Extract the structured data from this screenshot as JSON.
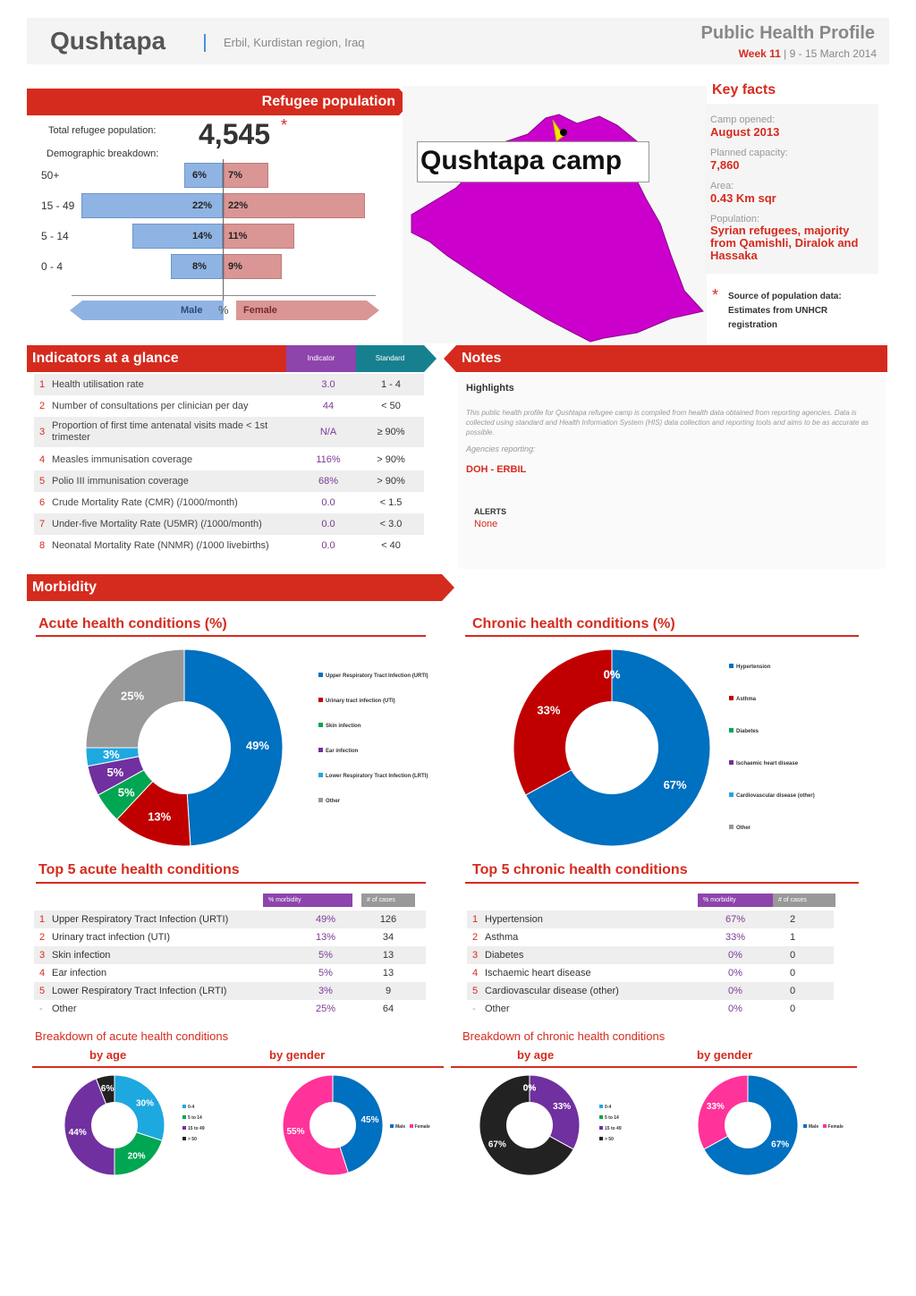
{
  "header": {
    "title": "Qushtapa",
    "location": "Erbil, Kurdistan region, Iraq",
    "profile_title": "Public Health Profile",
    "week": "Week 11",
    "dates": "| 9 - 15 March 2014"
  },
  "population": {
    "banner": "Refugee population",
    "total_label": "Total refugee population:",
    "total_value": "4,545",
    "asterisk": "*",
    "demo_label": "Demographic breakdown:",
    "groups": [
      {
        "label": "50+",
        "male": "6%",
        "female": "7%",
        "male_pct": 6,
        "female_pct": 7
      },
      {
        "label": "15 - 49",
        "male": "22%",
        "female": "22%",
        "male_pct": 22,
        "female_pct": 22
      },
      {
        "label": "5 - 14",
        "male": "14%",
        "female": "11%",
        "male_pct": 14,
        "female_pct": 11
      },
      {
        "label": "0 - 4",
        "male": "8%",
        "female": "9%",
        "male_pct": 8,
        "female_pct": 9
      }
    ],
    "male_label": "Male",
    "pct_label": "%",
    "female_label": "Female"
  },
  "map": {
    "label": "Qushtapa camp",
    "colors": {
      "fill": "#cc00cc",
      "marker": "#f5e400"
    }
  },
  "key_facts": {
    "title": "Key facts",
    "items": [
      {
        "label": "Camp opened:",
        "value": "August 2013"
      },
      {
        "label": "Planned capacity:",
        "value": "7,860"
      },
      {
        "label": "Area:",
        "value": "0.43 Km sqr"
      },
      {
        "label": "Population:",
        "value": "Syrian refugees, majority from Qamishli, Diralok and Hassaka"
      }
    ],
    "source_star": "*",
    "source_text": "Source of population data: Estimates from UNHCR registration"
  },
  "indicators": {
    "banner": "Indicators at a glance",
    "col_indicator": "Indicator",
    "col_standard": "Standard",
    "rows": [
      {
        "n": "1",
        "label": "Health utilisation rate",
        "ind": "3.0",
        "std": "1 - 4"
      },
      {
        "n": "2",
        "label": "Number of consultations per clinician per day",
        "ind": "44",
        "std": "< 50"
      },
      {
        "n": "3",
        "label": "Proportion of first time antenatal visits made < 1st trimester",
        "ind": "N/A",
        "std": "≥ 90%"
      },
      {
        "n": "4",
        "label": "Measles immunisation coverage",
        "ind": "116%",
        "std": "> 90%"
      },
      {
        "n": "5",
        "label": "Polio III immunisation coverage",
        "ind": "68%",
        "std": "> 90%"
      },
      {
        "n": "6",
        "label": "Crude Mortality Rate (CMR) (/1000/month)",
        "ind": "0.0",
        "std": "< 1.5"
      },
      {
        "n": "7",
        "label": "Under-five Mortality Rate (U5MR) (/1000/month)",
        "ind": "0.0",
        "std": "< 3.0"
      },
      {
        "n": "8",
        "label": "Neonatal Mortality Rate (NNMR) (/1000 livebirths)",
        "ind": "0.0",
        "std": "< 40"
      }
    ]
  },
  "notes": {
    "banner": "Notes",
    "highlights": "Highlights",
    "body": "This public health profile for Qushtapa refugee camp is compiled from health data obtained from reporting agencies. Data is collected using standard and Health Information System (HIS) data collection and reporting tools and aims to be as accurate as possible.",
    "agencies_label": "Agencies reporting:",
    "agency": "DOH - ERBIL",
    "alerts_label": "ALERTS",
    "alerts_value": "None"
  },
  "morbidity": {
    "banner": "Morbidity",
    "acute_title": "Acute health conditions (%)",
    "chronic_title": "Chronic health conditions (%)",
    "acute_legend": [
      "Upper Respiratory Tract Infection (URTI)",
      "Urinary tract infection (UTI)",
      "Skin infection",
      "Ear infection",
      "Lower Respiratory Tract Infection (LRTI)",
      "Other"
    ],
    "chronic_legend": [
      "Hypertension",
      "Asthma",
      "Diabetes",
      "Ischaemic heart disease",
      "Cardiovascular disease (other)",
      "Other"
    ],
    "top_acute_title": "Top 5 acute health conditions",
    "top_chronic_title": "Top 5 chronic health conditions",
    "col_morbidity": "% morbidity",
    "col_cases": "# of cases",
    "acute_rows": [
      {
        "n": "1",
        "label": "Upper Respiratory Tract Infection (URTI)",
        "pct": "49%",
        "cases": "126"
      },
      {
        "n": "2",
        "label": "Urinary tract infection (UTI)",
        "pct": "13%",
        "cases": "34"
      },
      {
        "n": "3",
        "label": "Skin infection",
        "pct": "5%",
        "cases": "13"
      },
      {
        "n": "4",
        "label": "Ear infection",
        "pct": "5%",
        "cases": "13"
      },
      {
        "n": "5",
        "label": "Lower Respiratory Tract Infection (LRTI)",
        "pct": "3%",
        "cases": "9"
      },
      {
        "n": "-",
        "label": "Other",
        "pct": "25%",
        "cases": "64"
      }
    ],
    "chronic_rows": [
      {
        "n": "1",
        "label": "Hypertension",
        "pct": "67%",
        "cases": "2"
      },
      {
        "n": "2",
        "label": "Asthma",
        "pct": "33%",
        "cases": "1"
      },
      {
        "n": "3",
        "label": "Diabetes",
        "pct": "0%",
        "cases": "0"
      },
      {
        "n": "4",
        "label": "Ischaemic heart disease",
        "pct": "0%",
        "cases": "0"
      },
      {
        "n": "5",
        "label": "Cardiovascular disease (other)",
        "pct": "0%",
        "cases": "0"
      },
      {
        "n": "-",
        "label": "Other",
        "pct": "0%",
        "cases": "0"
      }
    ],
    "breakdown_acute": "Breakdown of acute health conditions",
    "breakdown_chronic": "Breakdown of chronic health conditions",
    "by_age": "by age",
    "by_gender": "by gender",
    "age_legend": [
      "0-4",
      "5 to 14",
      "15 to 49",
      "> 50"
    ],
    "gender_legend": [
      "Male",
      "Female"
    ]
  },
  "chart_data": [
    {
      "type": "pie",
      "title": "Acute health conditions (%)",
      "labels": [
        "Upper Respiratory Tract Infection (URTI)",
        "Urinary tract infection (UTI)",
        "Skin infection",
        "Ear infection",
        "Lower Respiratory Tract Infection (LRTI)",
        "Other"
      ],
      "values": [
        49,
        13,
        5,
        5,
        3,
        25
      ],
      "display": [
        "49%",
        "13%",
        "5%",
        "5%",
        "3%",
        "25%"
      ],
      "colors": [
        "#0070c0",
        "#c00000",
        "#00a651",
        "#7030a0",
        "#1ea8e0",
        "#999999"
      ]
    },
    {
      "type": "pie",
      "title": "Chronic health conditions (%)",
      "labels": [
        "Hypertension",
        "Asthma",
        "Diabetes",
        "Ischaemic heart disease",
        "Cardiovascular disease (other)",
        "Other"
      ],
      "values": [
        67,
        33,
        0,
        0,
        0,
        0
      ],
      "display": [
        "67%",
        "33%",
        "0%",
        "0%",
        "",
        ""
      ],
      "colors": [
        "#0070c0",
        "#c00000",
        "#00a651",
        "#7030a0",
        "#1ea8e0",
        "#999999"
      ]
    },
    {
      "type": "pie",
      "title": "by age",
      "labels": [
        "0-4",
        "5 to 14",
        "15 to 49",
        "> 50"
      ],
      "values": [
        30,
        20,
        44,
        6
      ],
      "display": [
        "30%",
        "20%",
        "44%",
        "6%"
      ],
      "colors": [
        "#1ea8e0",
        "#00a651",
        "#7030a0",
        "#222222"
      ]
    },
    {
      "type": "pie",
      "title": "by gender",
      "labels": [
        "Male",
        "Female"
      ],
      "values": [
        45,
        55
      ],
      "display": [
        "45%",
        "55%"
      ],
      "colors": [
        "#0070c0",
        "#ff3399"
      ]
    },
    {
      "type": "pie",
      "title": "by age",
      "labels": [
        "0-4",
        "5 to 14",
        "15 to 49",
        "> 50"
      ],
      "values": [
        0,
        0,
        33,
        67
      ],
      "display": [
        "0%",
        "0%",
        "33%",
        "67%"
      ],
      "colors": [
        "#1ea8e0",
        "#00a651",
        "#7030a0",
        "#222222"
      ]
    },
    {
      "type": "pie",
      "title": "by gender",
      "labels": [
        "Male",
        "Female"
      ],
      "values": [
        67,
        33
      ],
      "display": [
        "67%",
        "33%"
      ],
      "colors": [
        "#0070c0",
        "#ff3399"
      ]
    }
  ]
}
